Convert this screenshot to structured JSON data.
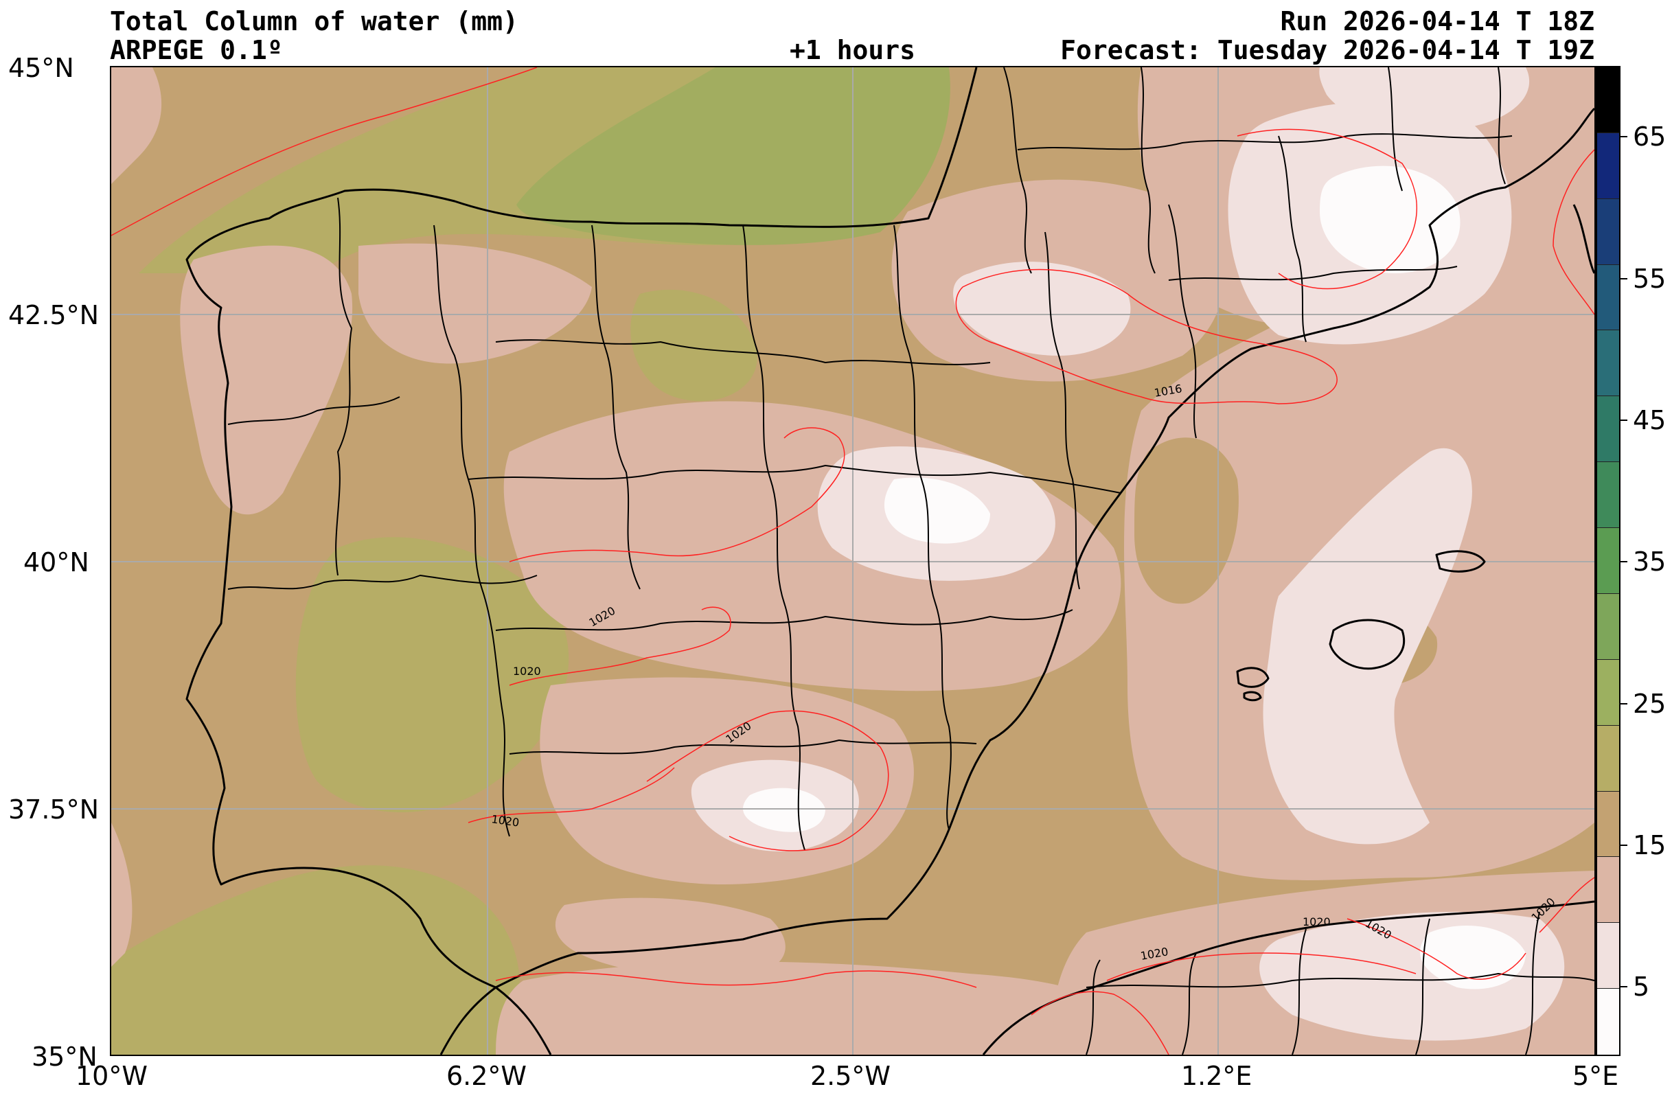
{
  "header": {
    "title": "Total Column of water (mm)",
    "model": "ARPEGE 0.1º",
    "lead": "+1 hours",
    "run": "Run 2026-04-14 T 18Z",
    "forecast": "Forecast: Tuesday 2026-04-14 T 19Z"
  },
  "axes": {
    "lat_labels": [
      "45°N",
      "42.5°N",
      "40°N",
      "37.5°N",
      "35°N"
    ],
    "lon_labels": [
      "10°W",
      "6.2°W",
      "2.5°W",
      "1.2°E",
      "5°E"
    ]
  },
  "colorbar": {
    "labels": [
      "65",
      "55",
      "45",
      "35",
      "25",
      "15",
      "5"
    ],
    "colors": [
      "#fdfbfb",
      "#f1e1df",
      "#dcb6a5",
      "#c3a272",
      "#b6ad66",
      "#9cb060",
      "#7ea65a",
      "#5b9c52",
      "#3f8a5a",
      "#2f7a66",
      "#2a6e78",
      "#225a7a",
      "#1a3e78",
      "#12287a",
      "#000000"
    ]
  },
  "isobars": {
    "labels": [
      "1016",
      "1020",
      "1020",
      "1020",
      "1020",
      "1020",
      "1020",
      "1020",
      "1020"
    ]
  },
  "map_colors": {
    "sea_base": "#c3a272",
    "olive": "#b6ad66",
    "green": "#a2ad60",
    "pink": "#dcb6a5",
    "light": "#f1e1df",
    "white": "#fdfbfb",
    "isobar": "#ff2020",
    "border": "#000000",
    "grid": "#aaaaaa"
  }
}
